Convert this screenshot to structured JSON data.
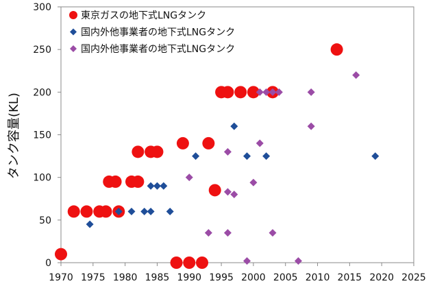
{
  "chart_data": {
    "type": "scatter",
    "title": "",
    "xlabel": "",
    "ylabel": "タンク容量(KL)",
    "xlim": [
      1970,
      2025
    ],
    "ylim": [
      0,
      300
    ],
    "xticks": [
      1970,
      1975,
      1980,
      1985,
      1990,
      1995,
      2000,
      2005,
      2010,
      2015,
      2020,
      2025
    ],
    "yticks": [
      0,
      50,
      100,
      150,
      200,
      250,
      300
    ],
    "grid": false,
    "legend_position": "top-left",
    "series": [
      {
        "name": "東京ガスの地下式LNGタンク",
        "marker": "circle",
        "color": "#ee1111",
        "points": [
          [
            1970,
            10
          ],
          [
            1972,
            60
          ],
          [
            1974,
            60
          ],
          [
            1976,
            60
          ],
          [
            1977,
            60
          ],
          [
            1977.5,
            95
          ],
          [
            1978.5,
            95
          ],
          [
            1979,
            60
          ],
          [
            1981,
            95
          ],
          [
            1982,
            95
          ],
          [
            1982,
            130
          ],
          [
            1984,
            130
          ],
          [
            1985,
            130
          ],
          [
            1988,
            0
          ],
          [
            1989,
            140
          ],
          [
            1990,
            0
          ],
          [
            1992,
            0
          ],
          [
            1993,
            140
          ],
          [
            1994,
            85
          ],
          [
            1995,
            200
          ],
          [
            1996,
            200
          ],
          [
            1998,
            200
          ],
          [
            2000,
            200
          ],
          [
            2003,
            200
          ],
          [
            2013,
            250
          ]
        ]
      },
      {
        "name": "国内外他事業者の地下式LNGタンク",
        "marker": "diamond",
        "color": "#1f4e99",
        "points": [
          [
            1974.5,
            45
          ],
          [
            1979,
            60
          ],
          [
            1981,
            60
          ],
          [
            1983,
            60
          ],
          [
            1984,
            60
          ],
          [
            1984,
            90
          ],
          [
            1985,
            90
          ],
          [
            1986,
            90
          ],
          [
            1987,
            60
          ],
          [
            1991,
            125
          ],
          [
            1997,
            160
          ],
          [
            1999,
            125
          ],
          [
            2002,
            125
          ],
          [
            2019,
            125
          ]
        ]
      },
      {
        "name": "国内外他事業者の地下式LNGタンク",
        "marker": "diamond",
        "color": "#9b4ca6",
        "points": [
          [
            1990,
            100
          ],
          [
            1993,
            35
          ],
          [
            1996,
            130
          ],
          [
            1996,
            83
          ],
          [
            1996,
            35
          ],
          [
            1997,
            80
          ],
          [
            1999,
            2
          ],
          [
            2000,
            94
          ],
          [
            2001,
            140
          ],
          [
            2001,
            200
          ],
          [
            2002,
            200
          ],
          [
            2003,
            200
          ],
          [
            2003,
            35
          ],
          [
            2004,
            200
          ],
          [
            2007,
            2
          ],
          [
            2009,
            200
          ],
          [
            2009,
            160
          ],
          [
            2016,
            220
          ]
        ]
      }
    ]
  }
}
